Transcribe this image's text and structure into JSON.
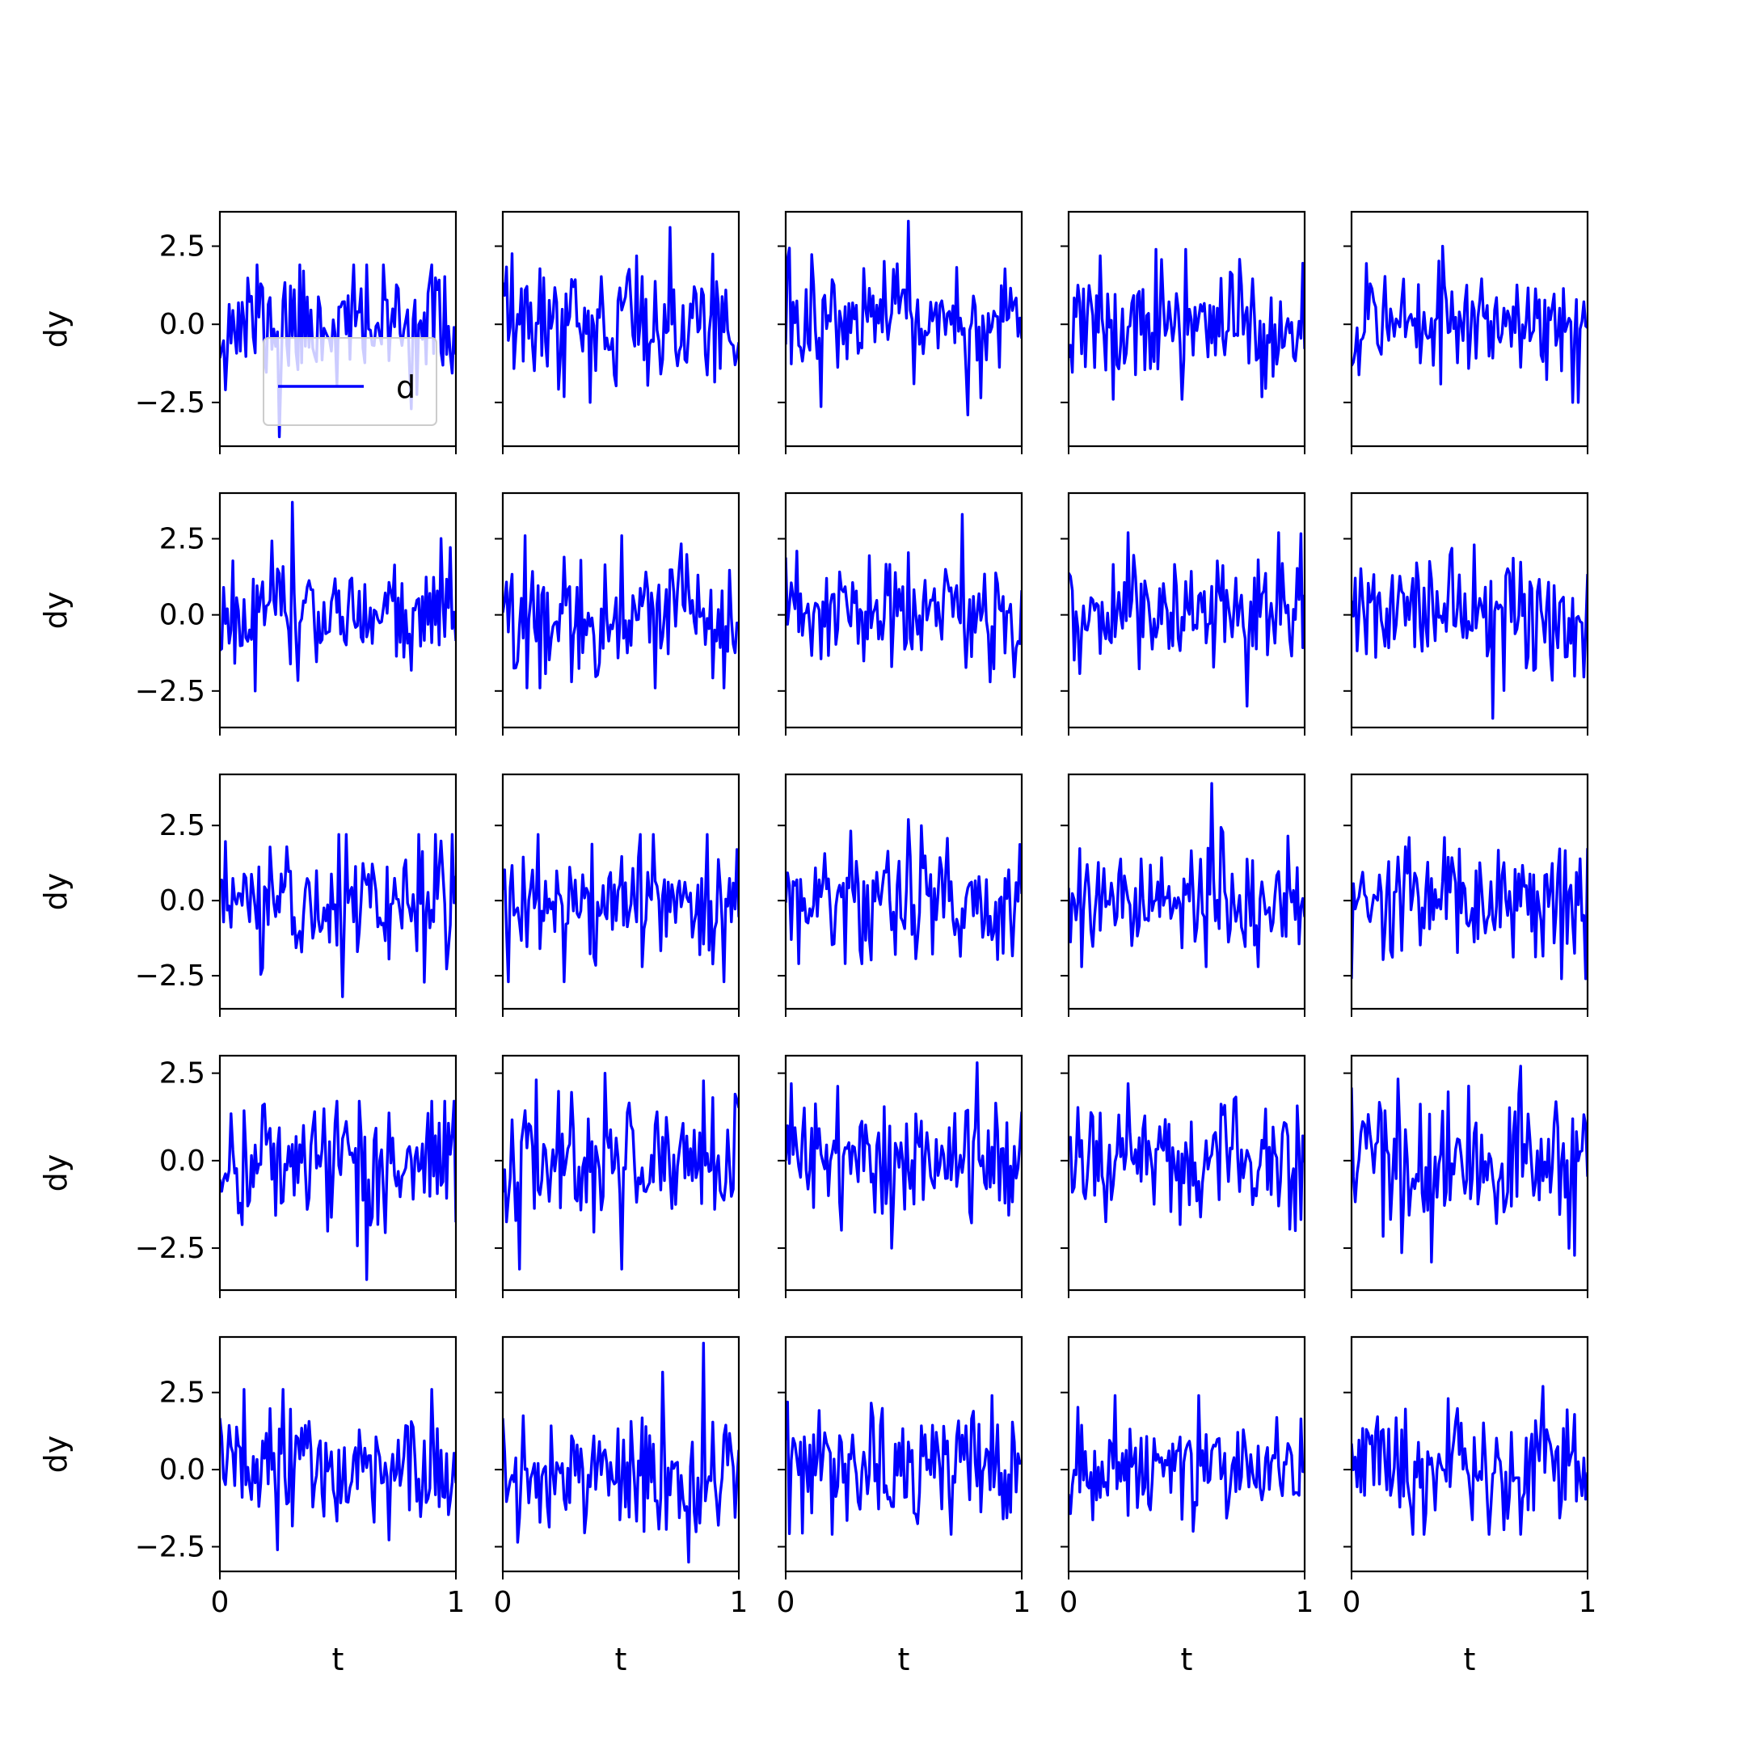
{
  "figure": {
    "rows": 5,
    "cols": 5,
    "line_color": "#0000ff",
    "points_per_panel": 128
  },
  "axes_labels": {
    "xlabel": "t",
    "ylabel": "dy"
  },
  "legend": {
    "label": "d",
    "location": "lower-center of top-left panel"
  },
  "chart_data": {
    "type": "line",
    "xlabel": "t",
    "ylabel": "dy",
    "xlim": [
      0,
      1
    ],
    "x_ticks": [
      0,
      1
    ],
    "x_tick_labels": [
      "0",
      "1"
    ],
    "y_ticks": [
      -2.5,
      0.0,
      2.5
    ],
    "y_tick_labels": [
      "−2.5",
      "0.0",
      "2.5"
    ],
    "row_ylims": [
      [
        -3.9,
        3.6
      ],
      [
        -3.7,
        4.0
      ],
      [
        -3.6,
        4.2
      ],
      [
        -3.7,
        3.0
      ],
      [
        -3.3,
        4.3
      ]
    ],
    "x": "128 points evenly spaced from 0 to 1",
    "series": [
      {
        "row": 0,
        "col": 0,
        "seed": 11,
        "min": -3.6,
        "max": 1.9
      },
      {
        "row": 0,
        "col": 1,
        "seed": 12,
        "min": -2.5,
        "max": 3.1
      },
      {
        "row": 0,
        "col": 2,
        "seed": 13,
        "min": -2.9,
        "max": 3.3
      },
      {
        "row": 0,
        "col": 3,
        "seed": 14,
        "min": -2.4,
        "max": 2.4
      },
      {
        "row": 0,
        "col": 4,
        "seed": 15,
        "min": -2.5,
        "max": 2.5
      },
      {
        "row": 1,
        "col": 0,
        "seed": 21,
        "min": -2.5,
        "max": 3.7
      },
      {
        "row": 1,
        "col": 1,
        "seed": 22,
        "min": -2.4,
        "max": 2.6
      },
      {
        "row": 1,
        "col": 2,
        "seed": 23,
        "min": -2.2,
        "max": 3.3
      },
      {
        "row": 1,
        "col": 3,
        "seed": 24,
        "min": -3.0,
        "max": 2.7
      },
      {
        "row": 1,
        "col": 4,
        "seed": 25,
        "min": -3.4,
        "max": 2.3
      },
      {
        "row": 2,
        "col": 0,
        "seed": 31,
        "min": -3.2,
        "max": 2.2
      },
      {
        "row": 2,
        "col": 1,
        "seed": 32,
        "min": -2.7,
        "max": 2.2
      },
      {
        "row": 2,
        "col": 2,
        "seed": 33,
        "min": -2.1,
        "max": 2.7
      },
      {
        "row": 2,
        "col": 3,
        "seed": 34,
        "min": -2.2,
        "max": 3.9
      },
      {
        "row": 2,
        "col": 4,
        "seed": 35,
        "min": -2.6,
        "max": 2.1
      },
      {
        "row": 3,
        "col": 0,
        "seed": 41,
        "min": -3.4,
        "max": 1.7
      },
      {
        "row": 3,
        "col": 1,
        "seed": 42,
        "min": -3.1,
        "max": 2.5
      },
      {
        "row": 3,
        "col": 2,
        "seed": 43,
        "min": -2.5,
        "max": 2.8
      },
      {
        "row": 3,
        "col": 3,
        "seed": 44,
        "min": -2.0,
        "max": 2.2
      },
      {
        "row": 3,
        "col": 4,
        "seed": 45,
        "min": -2.9,
        "max": 2.7
      },
      {
        "row": 4,
        "col": 0,
        "seed": 51,
        "min": -2.6,
        "max": 2.6
      },
      {
        "row": 4,
        "col": 1,
        "seed": 52,
        "min": -3.0,
        "max": 4.1
      },
      {
        "row": 4,
        "col": 2,
        "seed": 53,
        "min": -2.1,
        "max": 2.4
      },
      {
        "row": 4,
        "col": 3,
        "seed": 54,
        "min": -2.0,
        "max": 2.4
      },
      {
        "row": 4,
        "col": 4,
        "seed": 55,
        "min": -2.1,
        "max": 2.7
      }
    ]
  }
}
